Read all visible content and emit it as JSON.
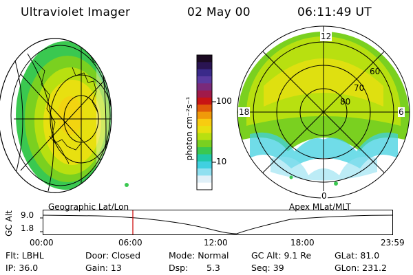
{
  "header": {
    "instrument": "Ultraviolet Imager",
    "date": "02 May 00",
    "time": "06:11:49 UT"
  },
  "panels": {
    "left_caption": "Geographic Lat/Lon",
    "right_caption": "Apex MLat/MLT"
  },
  "colorbar": {
    "unit_label": "photon cm⁻²s⁻¹",
    "ticks": [
      "100",
      "10"
    ],
    "colors": [
      "#1b0a22",
      "#2a1452",
      "#3a2a8a",
      "#5a3aa0",
      "#7a2a7a",
      "#a01a4a",
      "#c81414",
      "#e05a0a",
      "#f09a0a",
      "#f8cc10",
      "#e8e010",
      "#b8e010",
      "#7ad020",
      "#3ac850",
      "#20c8a8",
      "#40d0e0",
      "#90e0f0",
      "#e0f0f8",
      "#ffffff"
    ]
  },
  "polar": {
    "mlt_labels": [
      "12",
      "18",
      "6",
      "0"
    ],
    "lat_labels": [
      "60",
      "70",
      "80"
    ]
  },
  "timeline": {
    "axis_label": "GC Alt",
    "y_ticks": [
      "9.0",
      "1.8"
    ],
    "x_ticks": [
      "00:00",
      "06:00",
      "12:00",
      "18:00",
      "23:59"
    ],
    "current_marker_color": "#cc0000"
  },
  "status": {
    "filter": "Flt: LBHL",
    "ip": "IP: 36.0",
    "door": "Door: Closed",
    "gain": "Gain: 13",
    "mode": "Mode: Normal",
    "dsp_label": "Dsp:",
    "dsp_value": "5.3",
    "gc_alt": "GC Alt: 9.1 Re",
    "seq": "Seq: 39",
    "glat": "GLat:  81.0",
    "glon": "GLon: 231.2"
  }
}
